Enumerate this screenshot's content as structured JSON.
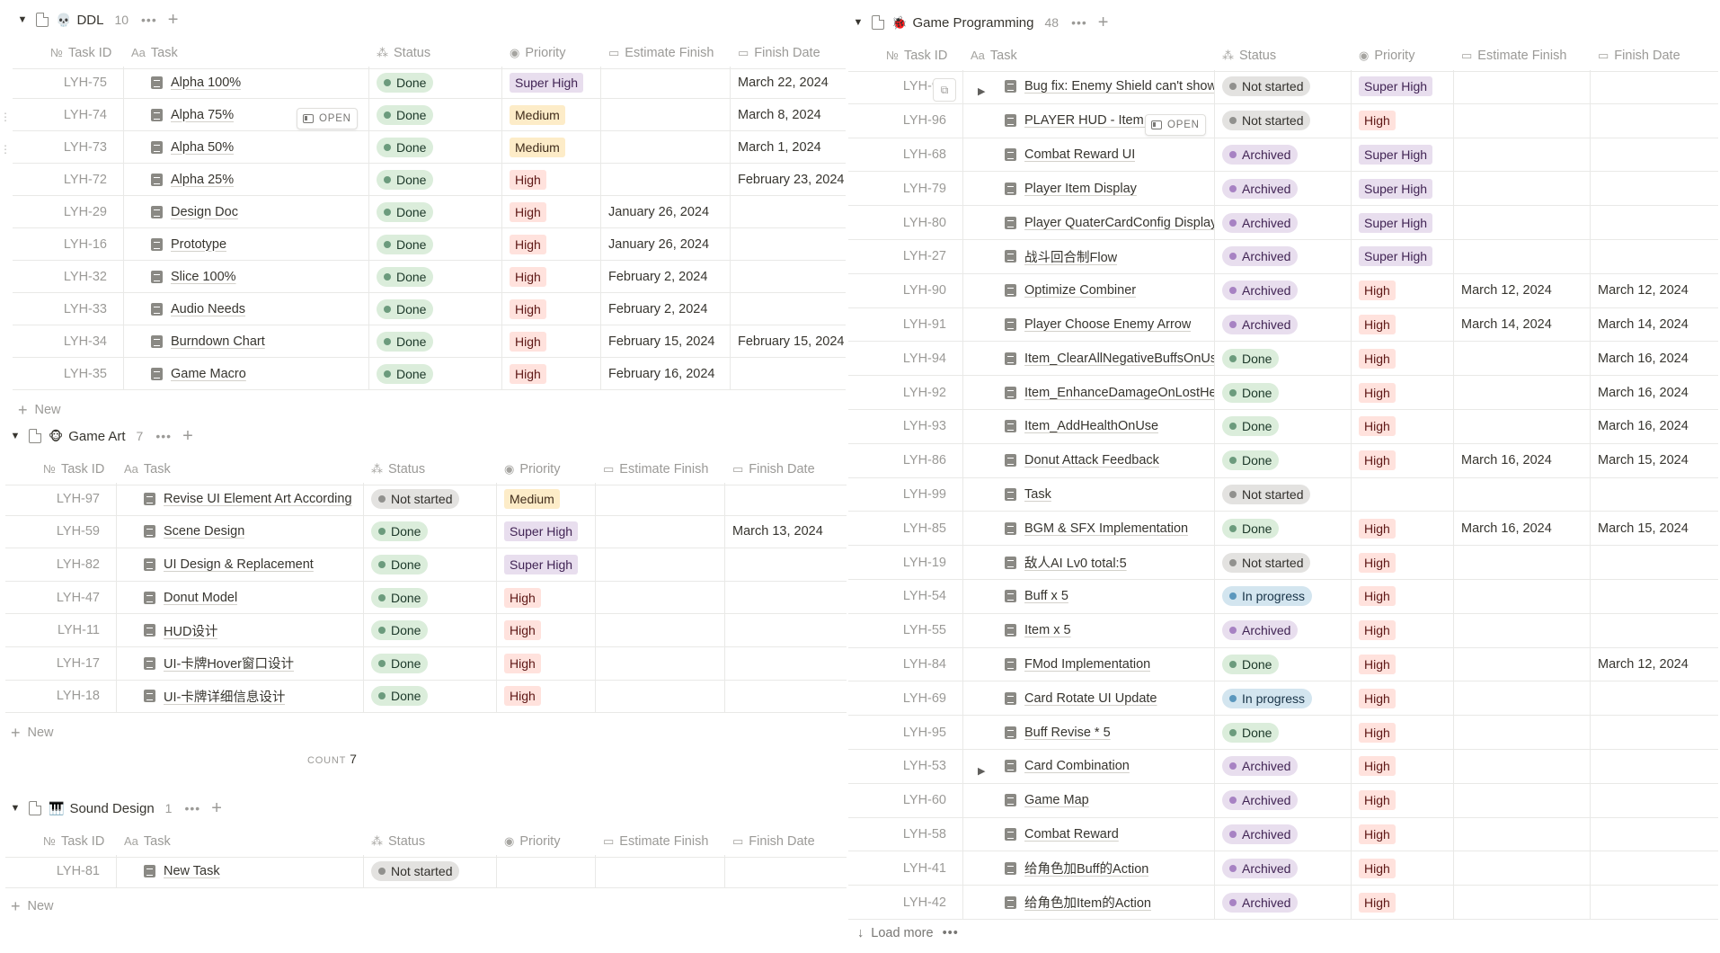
{
  "groups": [
    {
      "key": "ddl",
      "emoji": "💀",
      "name": "DDL",
      "count": "10",
      "new_label": "New",
      "headers": [
        "Task ID",
        "Task",
        "Status",
        "Priority",
        "Estimate Finish",
        "Finish Date"
      ],
      "rows": [
        {
          "id": "LYH-75",
          "task": "Alpha 100%",
          "status": "Done",
          "priority": "Super High",
          "estimate": "",
          "finish": "March 22, 2024"
        },
        {
          "id": "LYH-74",
          "task": "Alpha 75%",
          "status": "Done",
          "priority": "Medium",
          "estimate": "",
          "finish": "March 8, 2024"
        },
        {
          "id": "LYH-73",
          "task": "Alpha 50%",
          "status": "Done",
          "priority": "Medium",
          "estimate": "",
          "finish": "March 1, 2024"
        },
        {
          "id": "LYH-72",
          "task": "Alpha 25%",
          "status": "Done",
          "priority": "High",
          "estimate": "",
          "finish": "February 23, 2024"
        },
        {
          "id": "LYH-29",
          "task": "Design Doc",
          "status": "Done",
          "priority": "High",
          "estimate": "January 26, 2024",
          "finish": ""
        },
        {
          "id": "LYH-16",
          "task": "Prototype",
          "status": "Done",
          "priority": "High",
          "estimate": "January 26, 2024",
          "finish": ""
        },
        {
          "id": "LYH-32",
          "task": "Slice 100%",
          "status": "Done",
          "priority": "High",
          "estimate": "February 2, 2024",
          "finish": ""
        },
        {
          "id": "LYH-33",
          "task": "Audio Needs",
          "status": "Done",
          "priority": "High",
          "estimate": "February 2, 2024",
          "finish": ""
        },
        {
          "id": "LYH-34",
          "task": "Burndown Chart",
          "status": "Done",
          "priority": "High",
          "estimate": "February 15, 2024",
          "finish": "February 15, 2024"
        },
        {
          "id": "LYH-35",
          "task": "Game Macro",
          "status": "Done",
          "priority": "High",
          "estimate": "February 16, 2024",
          "finish": ""
        }
      ]
    },
    {
      "key": "art",
      "emoji": "🐵",
      "name": "Game Art",
      "count": "7",
      "new_label": "New",
      "count_label": "COUNT",
      "count_value": "7",
      "headers": [
        "Task ID",
        "Task",
        "Status",
        "Priority",
        "Estimate Finish",
        "Finish Date"
      ],
      "rows": [
        {
          "id": "LYH-97",
          "task": "Revise UI Element Art According",
          "status": "Not started",
          "priority": "Medium",
          "estimate": "",
          "finish": ""
        },
        {
          "id": "LYH-59",
          "task": "Scene Design",
          "status": "Done",
          "priority": "Super High",
          "estimate": "",
          "finish": "March 13, 2024"
        },
        {
          "id": "LYH-82",
          "task": "UI Design & Replacement",
          "status": "Done",
          "priority": "Super High",
          "estimate": "",
          "finish": ""
        },
        {
          "id": "LYH-47",
          "task": "Donut Model",
          "status": "Done",
          "priority": "High",
          "estimate": "",
          "finish": ""
        },
        {
          "id": "LYH-11",
          "task": "HUD设计",
          "status": "Done",
          "priority": "High",
          "estimate": "",
          "finish": ""
        },
        {
          "id": "LYH-17",
          "task": "UI-卡牌Hover窗口设计",
          "status": "Done",
          "priority": "High",
          "estimate": "",
          "finish": ""
        },
        {
          "id": "LYH-18",
          "task": "UI-卡牌详细信息设计",
          "status": "Done",
          "priority": "High",
          "estimate": "",
          "finish": ""
        }
      ]
    },
    {
      "key": "sound",
      "emoji": "🎹",
      "name": "Sound Design",
      "count": "1",
      "new_label": "New",
      "headers": [
        "Task ID",
        "Task",
        "Status",
        "Priority",
        "Estimate Finish",
        "Finish Date"
      ],
      "rows": [
        {
          "id": "LYH-81",
          "task": "New Task",
          "status": "Not started",
          "priority": "",
          "estimate": "",
          "finish": ""
        }
      ]
    },
    {
      "key": "prog",
      "emoji": "🐞",
      "name": "Game Programming",
      "count": "48",
      "load_more": "Load more",
      "headers": [
        "Task ID",
        "Task",
        "Status",
        "Priority",
        "Estimate Finish",
        "Finish Date"
      ],
      "rows": [
        {
          "id": "LYH-98",
          "task": "Bug fix: Enemy Shield can't show",
          "status": "Not started",
          "priority": "Super High",
          "estimate": "",
          "finish": ""
        },
        {
          "id": "LYH-96",
          "task": "PLAYER HUD - Item Usage",
          "status": "Not started",
          "priority": "High",
          "estimate": "",
          "finish": ""
        },
        {
          "id": "LYH-68",
          "task": "Combat Reward UI",
          "status": "Archived",
          "priority": "Super High",
          "estimate": "",
          "finish": ""
        },
        {
          "id": "LYH-79",
          "task": "Player Item Display",
          "status": "Archived",
          "priority": "Super High",
          "estimate": "",
          "finish": ""
        },
        {
          "id": "LYH-80",
          "task": "Player QuaterCardConfig Display",
          "status": "Archived",
          "priority": "Super High",
          "estimate": "",
          "finish": ""
        },
        {
          "id": "LYH-27",
          "task": "战斗回合制Flow",
          "status": "Archived",
          "priority": "Super High",
          "estimate": "",
          "finish": ""
        },
        {
          "id": "LYH-90",
          "task": "Optimize Combiner",
          "status": "Archived",
          "priority": "High",
          "estimate": "March 12, 2024",
          "finish": "March 12, 2024"
        },
        {
          "id": "LYH-91",
          "task": "Player Choose Enemy Arrow",
          "status": "Archived",
          "priority": "High",
          "estimate": "March 14, 2024",
          "finish": "March 14, 2024"
        },
        {
          "id": "LYH-94",
          "task": "Item_ClearAllNegativeBuffsOnUse",
          "status": "Done",
          "priority": "High",
          "estimate": "",
          "finish": "March 16, 2024"
        },
        {
          "id": "LYH-92",
          "task": "Item_EnhanceDamageOnLostHealth",
          "status": "Done",
          "priority": "High",
          "estimate": "",
          "finish": "March 16, 2024"
        },
        {
          "id": "LYH-93",
          "task": "Item_AddHealthOnUse",
          "status": "Done",
          "priority": "High",
          "estimate": "",
          "finish": "March 16, 2024"
        },
        {
          "id": "LYH-86",
          "task": "Donut Attack Feedback",
          "status": "Done",
          "priority": "High",
          "estimate": "March 16, 2024",
          "finish": "March 15, 2024"
        },
        {
          "id": "LYH-99",
          "task": "Task",
          "status": "Not started",
          "priority": "",
          "estimate": "",
          "finish": ""
        },
        {
          "id": "LYH-85",
          "task": "BGM & SFX Implementation",
          "status": "Done",
          "priority": "High",
          "estimate": "March 16, 2024",
          "finish": "March 15, 2024"
        },
        {
          "id": "LYH-19",
          "task": "敌人AI Lv0 total:5",
          "status": "Not started",
          "priority": "High",
          "estimate": "",
          "finish": ""
        },
        {
          "id": "LYH-54",
          "task": "Buff x 5",
          "status": "In progress",
          "priority": "High",
          "estimate": "",
          "finish": ""
        },
        {
          "id": "LYH-55",
          "task": "Item x 5",
          "status": "Archived",
          "priority": "High",
          "estimate": "",
          "finish": ""
        },
        {
          "id": "LYH-84",
          "task": "FMod Implementation",
          "status": "Done",
          "priority": "High",
          "estimate": "",
          "finish": "March 12, 2024"
        },
        {
          "id": "LYH-69",
          "task": "Card Rotate UI Update",
          "status": "In progress",
          "priority": "High",
          "estimate": "",
          "finish": ""
        },
        {
          "id": "LYH-95",
          "task": "Buff Revise * 5",
          "status": "Done",
          "priority": "High",
          "estimate": "",
          "finish": ""
        },
        {
          "id": "LYH-53",
          "task": "Card Combination",
          "status": "Archived",
          "priority": "High",
          "estimate": "",
          "finish": ""
        },
        {
          "id": "LYH-60",
          "task": "Game Map",
          "status": "Archived",
          "priority": "High",
          "estimate": "",
          "finish": ""
        },
        {
          "id": "LYH-58",
          "task": "Combat Reward",
          "status": "Archived",
          "priority": "High",
          "estimate": "",
          "finish": ""
        },
        {
          "id": "LYH-41",
          "task": "给角色加Buff的Action",
          "status": "Archived",
          "priority": "High",
          "estimate": "",
          "finish": ""
        },
        {
          "id": "LYH-42",
          "task": "给角色加Item的Action",
          "status": "Archived",
          "priority": "High",
          "estimate": "",
          "finish": ""
        }
      ]
    }
  ],
  "open_button": "OPEN",
  "icons": {
    "collapse": "triangle-down-icon",
    "page": "page-icon",
    "more": "more-dots-icon",
    "add": "plus-icon",
    "id_prop": "number-icon",
    "title_prop": "text-aa-icon",
    "status_prop": "status-spinner-icon",
    "priority_prop": "select-circle-icon",
    "date_prop": "calendar-icon",
    "task_doc": "document-icon"
  }
}
